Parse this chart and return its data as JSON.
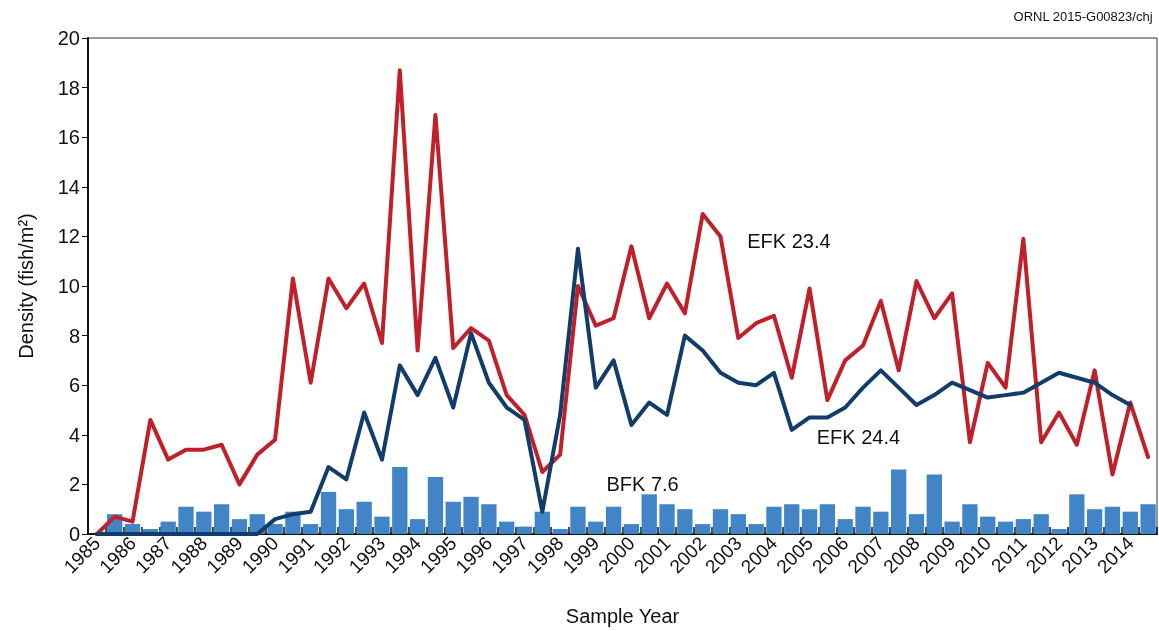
{
  "chart_data": {
    "type": "line",
    "xlabel": "Sample Year",
    "ylabel": "Density (fish/m²)",
    "annotations": [
      "ORNL 2015-G00823/chj"
    ],
    "categories": [
      "1985",
      null,
      "1986",
      null,
      "1987",
      null,
      "1988",
      null,
      "1989",
      null,
      "1990",
      null,
      "1991",
      null,
      "1992",
      null,
      "1993",
      null,
      "1994",
      null,
      "1995",
      null,
      "1996",
      null,
      "1997",
      null,
      "1998",
      null,
      "1999",
      null,
      "2000",
      null,
      "2001",
      null,
      "2002",
      null,
      "2003",
      null,
      "2004",
      null,
      "2005",
      null,
      "2006",
      null,
      "2007",
      null,
      "2008",
      null,
      "2009",
      null,
      "2010",
      null,
      "2011",
      null,
      "2012",
      null,
      "2013",
      null,
      "2014",
      null
    ],
    "series": [
      {
        "name": "BFK 7.6",
        "type": "bar",
        "color": "#4285c6",
        "values": [
          null,
          0.8,
          0.4,
          0.2,
          0.5,
          1.1,
          0.9,
          1.2,
          0.6,
          0.8,
          0.4,
          0.9,
          0.4,
          1.7,
          1.0,
          1.3,
          0.7,
          2.7,
          0.6,
          2.3,
          1.3,
          1.5,
          1.2,
          0.5,
          0.3,
          0.9,
          0.2,
          1.1,
          0.5,
          1.1,
          0.4,
          1.6,
          1.2,
          1.0,
          0.4,
          1.0,
          0.8,
          0.4,
          1.1,
          1.2,
          1.0,
          1.2,
          0.6,
          1.1,
          0.9,
          2.6,
          0.8,
          2.4,
          0.5,
          1.2,
          0.7,
          0.5,
          0.6,
          0.8,
          0.2,
          1.6,
          1.0,
          1.1,
          0.9,
          1.2
        ]
      },
      {
        "name": "EFK 23.4",
        "color": "#c0202a",
        "values": [
          0,
          0.7,
          0.5,
          4.6,
          3.0,
          3.4,
          3.4,
          3.6,
          2.0,
          3.2,
          3.8,
          10.3,
          6.1,
          10.3,
          9.1,
          10.1,
          7.7,
          18.7,
          7.4,
          16.9,
          7.5,
          8.3,
          7.8,
          5.6,
          4.8,
          2.5,
          3.2,
          10.0,
          8.4,
          8.7,
          11.6,
          8.7,
          10.1,
          8.9,
          12.9,
          12.0,
          7.9,
          8.5,
          8.8,
          6.3,
          9.9,
          5.4,
          7.0,
          7.6,
          9.4,
          6.6,
          10.2,
          8.7,
          9.7,
          3.7,
          6.9,
          5.9,
          11.9,
          3.7,
          4.9,
          3.6,
          6.6,
          2.4,
          5.3,
          3.1
        ]
      },
      {
        "name": "EFK 24.4",
        "color": "#123c6b",
        "values": [
          0,
          0,
          0,
          0,
          0,
          0,
          0,
          0,
          0,
          0,
          0.6,
          0.8,
          0.9,
          2.7,
          2.2,
          4.9,
          3.0,
          6.8,
          5.6,
          7.1,
          5.1,
          8.1,
          6.1,
          5.1,
          4.6,
          0.9,
          4.8,
          11.5,
          5.9,
          7.0,
          4.4,
          5.3,
          4.8,
          8.0,
          7.4,
          6.5,
          6.1,
          6.0,
          6.5,
          4.2,
          4.7,
          4.7,
          5.1,
          5.9,
          6.6,
          5.9,
          5.2,
          5.6,
          6.1,
          5.8,
          5.5,
          5.6,
          5.7,
          6.1,
          6.5,
          6.3,
          6.1,
          5.6,
          5.2,
          null
        ]
      }
    ],
    "ylim": [
      0,
      20
    ],
    "yticks": [
      0,
      2,
      4,
      6,
      8,
      10,
      12,
      14,
      16,
      18,
      20
    ],
    "grid": false,
    "legend": false,
    "marker": "none"
  }
}
